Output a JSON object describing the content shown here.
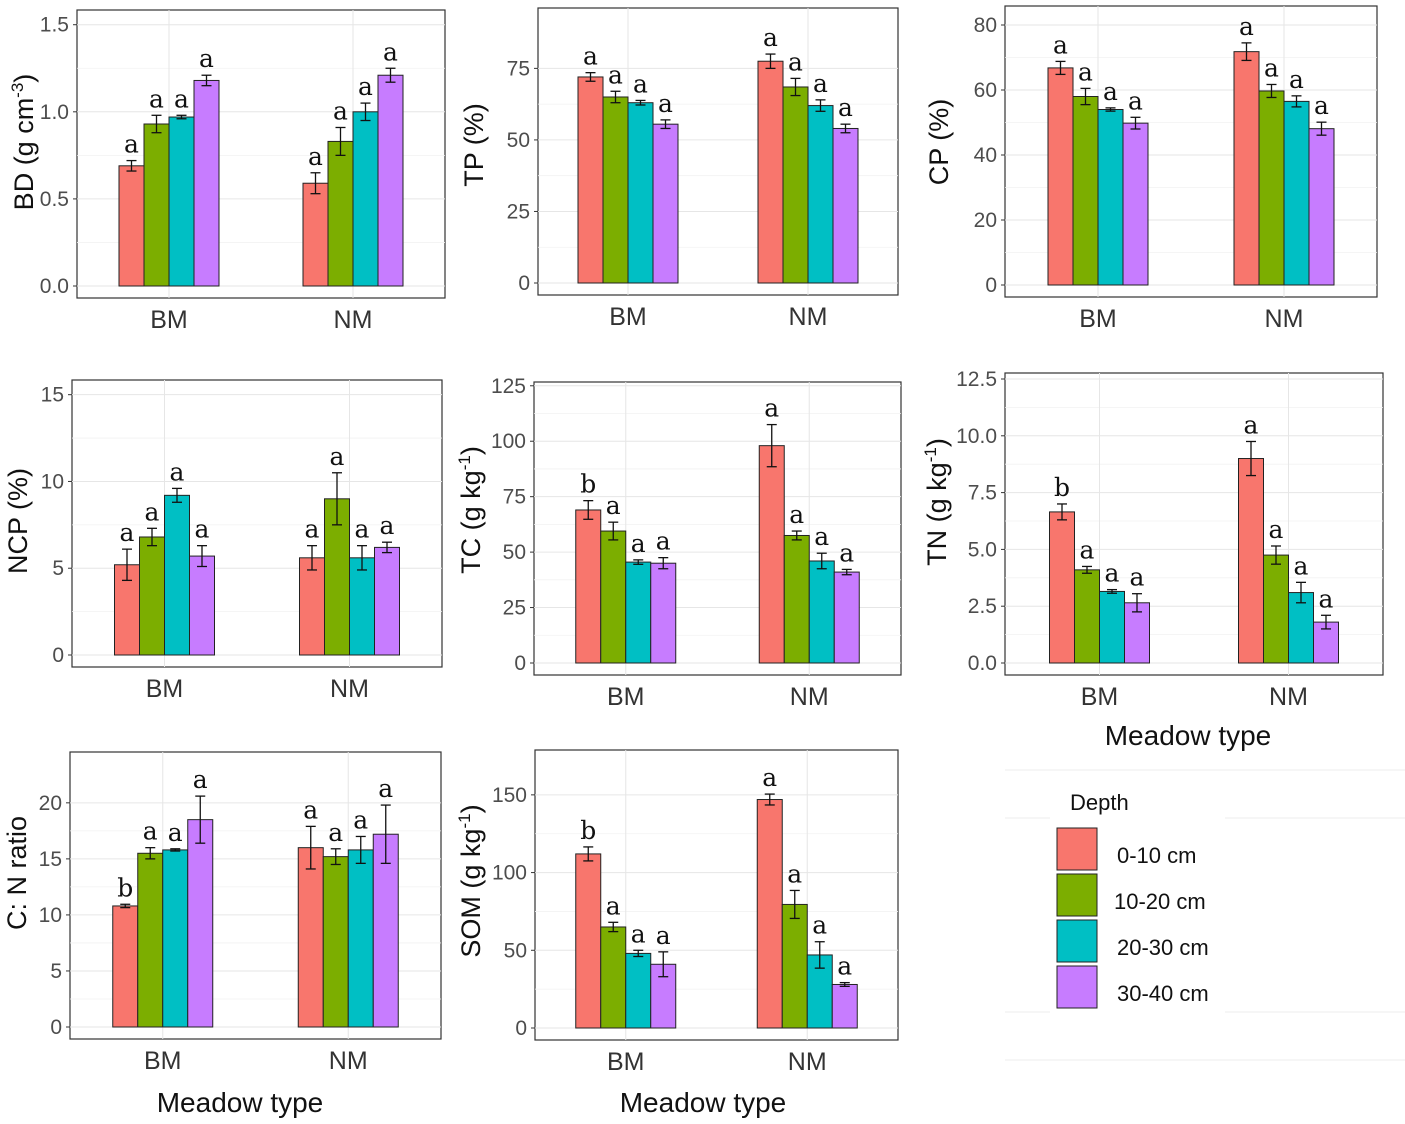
{
  "depth_legend": {
    "title": "Depth",
    "items": [
      {
        "label": "0-10 cm",
        "color": "#F8766D"
      },
      {
        "label": "10-20 cm",
        "color": "#7CAE00"
      },
      {
        "label": "20-30 cm",
        "color": "#00BFC4"
      },
      {
        "label": "30-40 cm",
        "color": "#C77CFF"
      }
    ]
  },
  "chart_data": [
    {
      "type": "bar",
      "ylabel_main": "BD (g cm",
      "ylabel_sup": "-3",
      "ylabel_end": ")",
      "xlabel": "",
      "categories": [
        "BM",
        "NM"
      ],
      "ylim": [
        0,
        1.55
      ],
      "yticks": [
        0.0,
        0.5,
        1.0,
        1.5
      ],
      "ytick_labels": [
        "0.0",
        "0.5",
        "1.0",
        "1.5"
      ],
      "series": [
        {
          "name": "0-10 cm",
          "values": [
            0.69,
            0.59
          ],
          "errors": [
            0.03,
            0.06
          ],
          "letters": [
            "a",
            "a"
          ]
        },
        {
          "name": "10-20 cm",
          "values": [
            0.93,
            0.83
          ],
          "errors": [
            0.05,
            0.08
          ],
          "letters": [
            "a",
            "a"
          ]
        },
        {
          "name": "20-30 cm",
          "values": [
            0.97,
            1.0
          ],
          "errors": [
            0.01,
            0.05
          ],
          "letters": [
            "a",
            "a"
          ]
        },
        {
          "name": "30-40 cm",
          "values": [
            1.18,
            1.21
          ],
          "errors": [
            0.03,
            0.04
          ],
          "letters": [
            "a",
            "a"
          ]
        }
      ]
    },
    {
      "type": "bar",
      "ylabel_main": "TP (%)",
      "ylabel_sup": "",
      "ylabel_end": "",
      "xlabel": "",
      "categories": [
        "BM",
        "NM"
      ],
      "ylim": [
        0,
        94
      ],
      "yticks": [
        0,
        25,
        50,
        75
      ],
      "ytick_labels": [
        "0",
        "25",
        "50",
        "75"
      ],
      "series": [
        {
          "name": "0-10 cm",
          "values": [
            72,
            77.5
          ],
          "errors": [
            1.5,
            2.5
          ],
          "letters": [
            "a",
            "a"
          ]
        },
        {
          "name": "10-20 cm",
          "values": [
            65,
            68.5
          ],
          "errors": [
            2,
            3
          ],
          "letters": [
            "a",
            "a"
          ]
        },
        {
          "name": "20-30 cm",
          "values": [
            63,
            62
          ],
          "errors": [
            0.8,
            2
          ],
          "letters": [
            "a",
            "a"
          ]
        },
        {
          "name": "30-40 cm",
          "values": [
            55.5,
            54
          ],
          "errors": [
            1.5,
            1.5
          ],
          "letters": [
            "a",
            "a"
          ]
        }
      ]
    },
    {
      "type": "bar",
      "ylabel_main": "CP (%)",
      "ylabel_sup": "",
      "ylabel_end": "",
      "xlabel": "",
      "categories": [
        "BM",
        "NM"
      ],
      "ylim": [
        0,
        84
      ],
      "yticks": [
        0,
        20,
        40,
        60,
        80
      ],
      "ytick_labels": [
        "0",
        "20",
        "40",
        "60",
        "80"
      ],
      "series": [
        {
          "name": "0-10 cm",
          "values": [
            66.8,
            71.8
          ],
          "errors": [
            2,
            2.7
          ],
          "letters": [
            "a",
            "a"
          ]
        },
        {
          "name": "10-20 cm",
          "values": [
            58,
            59.7
          ],
          "errors": [
            2.5,
            2
          ],
          "letters": [
            "a",
            "a"
          ]
        },
        {
          "name": "20-30 cm",
          "values": [
            54,
            56.5
          ],
          "errors": [
            0.5,
            1.7
          ],
          "letters": [
            "a",
            "a"
          ]
        },
        {
          "name": "30-40 cm",
          "values": [
            49.8,
            48.1
          ],
          "errors": [
            1.8,
            2
          ],
          "letters": [
            "a",
            "a"
          ]
        }
      ]
    },
    {
      "type": "bar",
      "ylabel_main": "NCP (%)",
      "ylabel_sup": "",
      "ylabel_end": "",
      "xlabel": "",
      "categories": [
        "BM",
        "NM"
      ],
      "ylim": [
        0,
        15.5
      ],
      "yticks": [
        0,
        5,
        10,
        15
      ],
      "ytick_labels": [
        "0",
        "5",
        "10",
        "15"
      ],
      "series": [
        {
          "name": "0-10 cm",
          "values": [
            5.2,
            5.6
          ],
          "errors": [
            0.9,
            0.7
          ],
          "letters": [
            "a",
            "a"
          ]
        },
        {
          "name": "10-20 cm",
          "values": [
            6.8,
            9.0
          ],
          "errors": [
            0.5,
            1.5
          ],
          "letters": [
            "a",
            "a"
          ]
        },
        {
          "name": "20-30 cm",
          "values": [
            9.2,
            5.6
          ],
          "errors": [
            0.4,
            0.7
          ],
          "letters": [
            "a",
            "a"
          ]
        },
        {
          "name": "30-40 cm",
          "values": [
            5.7,
            6.2
          ],
          "errors": [
            0.6,
            0.3
          ],
          "letters": [
            "a",
            "a"
          ]
        }
      ]
    },
    {
      "type": "bar",
      "ylabel_main": "TC (g kg",
      "ylabel_sup": "-1",
      "ylabel_end": ")",
      "xlabel": "",
      "categories": [
        "BM",
        "NM"
      ],
      "ylim": [
        0,
        124
      ],
      "yticks": [
        0,
        25,
        50,
        75,
        100,
        125
      ],
      "ytick_labels": [
        "0",
        "25",
        "50",
        "75",
        "100",
        "125"
      ],
      "series": [
        {
          "name": "0-10 cm",
          "values": [
            69,
            98
          ],
          "errors": [
            4.2,
            9.5
          ],
          "letters": [
            "b",
            "a"
          ]
        },
        {
          "name": "10-20 cm",
          "values": [
            59.5,
            57.5
          ],
          "errors": [
            4,
            2
          ],
          "letters": [
            "a",
            "a"
          ]
        },
        {
          "name": "20-30 cm",
          "values": [
            45.5,
            46
          ],
          "errors": [
            1,
            3.5
          ],
          "letters": [
            "a",
            "a"
          ]
        },
        {
          "name": "30-40 cm",
          "values": [
            45,
            41
          ],
          "errors": [
            2.5,
            1.2
          ],
          "letters": [
            "a",
            "a"
          ]
        }
      ]
    },
    {
      "type": "bar",
      "ylabel_main": "TN (g kg",
      "ylabel_sup": "-1",
      "ylabel_end": ")",
      "xlabel": "Meadow type",
      "categories": [
        "BM",
        "NM"
      ],
      "ylim": [
        0,
        12.5
      ],
      "yticks": [
        0.0,
        2.5,
        5.0,
        7.5,
        10.0,
        12.5
      ],
      "ytick_labels": [
        "0.0",
        "2.5",
        "5.0",
        "7.5",
        "10.0",
        "12.5"
      ],
      "series": [
        {
          "name": "0-10 cm",
          "values": [
            6.65,
            9.0
          ],
          "errors": [
            0.35,
            0.75
          ],
          "letters": [
            "b",
            "a"
          ]
        },
        {
          "name": "10-20 cm",
          "values": [
            4.1,
            4.75
          ],
          "errors": [
            0.15,
            0.4
          ],
          "letters": [
            "a",
            "a"
          ]
        },
        {
          "name": "20-30 cm",
          "values": [
            3.15,
            3.1
          ],
          "errors": [
            0.08,
            0.45
          ],
          "letters": [
            "a",
            "a"
          ]
        },
        {
          "name": "30-40 cm",
          "values": [
            2.65,
            1.8
          ],
          "errors": [
            0.4,
            0.3
          ],
          "letters": [
            "a",
            "a"
          ]
        }
      ]
    },
    {
      "type": "bar",
      "ylabel_main": "C: N ratio",
      "ylabel_sup": "",
      "ylabel_end": "",
      "xlabel": "Meadow type",
      "categories": [
        "BM",
        "NM"
      ],
      "ylim": [
        0,
        24
      ],
      "yticks": [
        0,
        5,
        10,
        15,
        20
      ],
      "ytick_labels": [
        "0",
        "5",
        "10",
        "15",
        "20"
      ],
      "series": [
        {
          "name": "0-10 cm",
          "values": [
            10.8,
            16.0
          ],
          "errors": [
            0.15,
            1.9
          ],
          "letters": [
            "b",
            "a"
          ]
        },
        {
          "name": "10-20 cm",
          "values": [
            15.5,
            15.2
          ],
          "errors": [
            0.5,
            0.7
          ],
          "letters": [
            "a",
            "a"
          ]
        },
        {
          "name": "20-30 cm",
          "values": [
            15.8,
            15.8
          ],
          "errors": [
            0.1,
            1.2
          ],
          "letters": [
            "a",
            "a"
          ]
        },
        {
          "name": "30-40 cm",
          "values": [
            18.5,
            17.2
          ],
          "errors": [
            2.1,
            2.6
          ],
          "letters": [
            "a",
            "a"
          ]
        }
      ]
    },
    {
      "type": "bar",
      "ylabel_main": "SOM (g kg",
      "ylabel_sup": "-1",
      "ylabel_end": ")",
      "xlabel": "Meadow type",
      "categories": [
        "BM",
        "NM"
      ],
      "ylim": [
        0,
        175
      ],
      "yticks": [
        0,
        50,
        100,
        150
      ],
      "ytick_labels": [
        "0",
        "50",
        "100",
        "150"
      ],
      "series": [
        {
          "name": "0-10 cm",
          "values": [
            112,
            147
          ],
          "errors": [
            4.5,
            3.5
          ],
          "letters": [
            "b",
            "a"
          ]
        },
        {
          "name": "10-20 cm",
          "values": [
            65,
            79.5
          ],
          "errors": [
            3,
            9
          ],
          "letters": [
            "a",
            "a"
          ]
        },
        {
          "name": "20-30 cm",
          "values": [
            48,
            47
          ],
          "errors": [
            2,
            8.5
          ],
          "letters": [
            "a",
            "a"
          ]
        },
        {
          "name": "30-40 cm",
          "values": [
            41,
            28
          ],
          "errors": [
            8,
            1.2
          ],
          "letters": [
            "a",
            "a"
          ]
        }
      ]
    }
  ]
}
